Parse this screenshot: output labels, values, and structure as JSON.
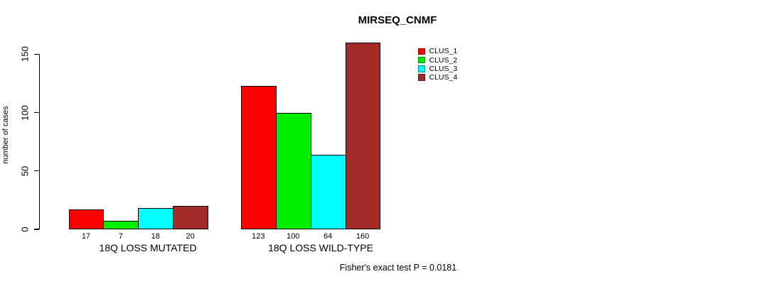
{
  "chart_data": {
    "type": "bar",
    "title": "MIRSEQ_CNMF",
    "ylabel": "number of cases",
    "xlabel": "",
    "categories": [
      "18Q LOSS MUTATED",
      "18Q LOSS WILD-TYPE"
    ],
    "series": [
      {
        "name": "CLUS_1",
        "color": "#ff0000",
        "values": [
          17,
          123
        ]
      },
      {
        "name": "CLUS_2",
        "color": "#00ee00",
        "values": [
          7,
          100
        ]
      },
      {
        "name": "CLUS_3",
        "color": "#00ffff",
        "values": [
          18,
          64
        ]
      },
      {
        "name": "CLUS_4",
        "color": "#a52a2a",
        "values": [
          20,
          160
        ]
      }
    ],
    "yticks": [
      0,
      50,
      100,
      150
    ],
    "ylim": [
      0,
      160
    ],
    "grid": false,
    "legend_position": "right",
    "annotation": "Fisher's exact test P = 0.0181"
  }
}
